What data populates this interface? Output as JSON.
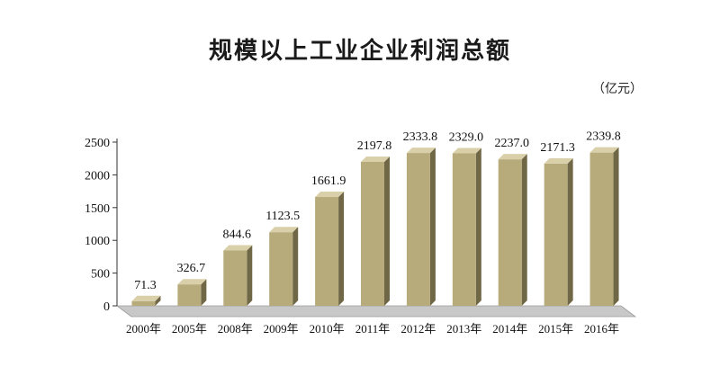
{
  "chart_data": {
    "type": "bar",
    "title": "规模以上工业企业利润总额",
    "unit": "（亿元）",
    "categories": [
      "2000年",
      "2005年",
      "2008年",
      "2009年",
      "2010年",
      "2011年",
      "2012年",
      "2013年",
      "2014年",
      "2015年",
      "2016年"
    ],
    "values": [
      71.3,
      326.7,
      844.6,
      1123.5,
      1661.9,
      2197.8,
      2333.8,
      2329.0,
      2237.0,
      2171.3,
      2339.8
    ],
    "value_labels": [
      "71.3",
      "326.7",
      "844.6",
      "1123.5",
      "1661.9",
      "2197.8",
      "2333.8",
      "2329.0",
      "2237.0",
      "2171.3",
      "2339.8"
    ],
    "y_ticks": [
      "0",
      "500",
      "1000",
      "1500",
      "2000",
      "2500"
    ],
    "ylim": [
      0,
      2500
    ],
    "xlabel": "",
    "ylabel": "",
    "grid": false,
    "legend": "none",
    "bar_style": "3d",
    "colors": {
      "bar_front": "#b7ab7c",
      "bar_side": "#6f6745",
      "bar_top": "#d9d0aa",
      "floor": "#c8c8c8",
      "axis": "#333333",
      "text": "#111111"
    }
  }
}
